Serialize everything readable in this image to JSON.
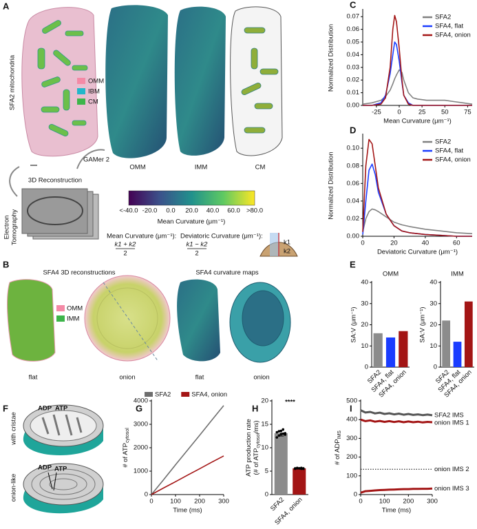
{
  "panel_a": {
    "letter": "A",
    "side_label": "SFA2 mitochondria",
    "legend": [
      "OMM",
      "IBM",
      "CM"
    ],
    "arrow_label": "GAMer 2",
    "reconstruction": "3D Reconstruction",
    "tomography": [
      "Electron",
      "Tomography"
    ],
    "maps": [
      "OMM",
      "IMM",
      "CM"
    ],
    "colorbar": {
      "ticks": [
        "<-40.0",
        "-20.0",
        "0.0",
        "20.0",
        "40.0",
        "60.0",
        ">80.0"
      ],
      "label": "Mean Curvature (μm⁻¹)"
    },
    "mean_def": "Mean Curvature (μm⁻¹):",
    "mean_formula": [
      "k1 + k2",
      "2"
    ],
    "dev_def": "Deviatoric Curvature (μm⁻¹):",
    "dev_formula": [
      "k1 − k2",
      "2"
    ],
    "diagram_labels": [
      "k1",
      "k2"
    ]
  },
  "panel_b": {
    "letter": "B",
    "title_left": "SFA4 3D reconstructions",
    "title_right": "SFA4 curvature maps",
    "legend": [
      "OMM",
      "IMM"
    ],
    "captions": [
      "flat",
      "onion",
      "flat",
      "onion"
    ]
  },
  "panel_f": {
    "letter": "F",
    "top": "with cristae",
    "bottom": "onion-like",
    "top_labels": [
      "ADP",
      "ATP"
    ],
    "bottom_labels": [
      "ADP",
      "ATP"
    ]
  },
  "letters": [
    "C",
    "D",
    "E",
    "G",
    "H",
    "I"
  ],
  "chart_data": [
    {
      "type": "line",
      "xlabel": "Mean Curvature (μm⁻¹)",
      "ylabel": "Normalized Distribution",
      "legend": "upper right",
      "x": [
        -40,
        -30,
        -20,
        -15,
        -10,
        -7,
        -5,
        -3,
        0,
        3,
        5,
        10,
        15,
        20,
        30,
        40,
        50,
        60,
        70,
        80
      ],
      "series": [
        {
          "name": "SFA2",
          "color": "#808080",
          "values": [
            0.001,
            0.002,
            0.004,
            0.007,
            0.012,
            0.017,
            0.021,
            0.024,
            0.028,
            0.026,
            0.02,
            0.01,
            0.006,
            0.005,
            0.004,
            0.004,
            0.004,
            0.003,
            0.002,
            0.001
          ]
        },
        {
          "name": "SFA4, flat",
          "color": "#1a3cff",
          "values": [
            0,
            0,
            0.002,
            0.008,
            0.025,
            0.04,
            0.05,
            0.048,
            0.035,
            0.018,
            0.008,
            0.002,
            0,
            0,
            0,
            0,
            0,
            0,
            0,
            0
          ]
        },
        {
          "name": "SFA4, onion",
          "color": "#a31515",
          "values": [
            0,
            0,
            0.001,
            0.006,
            0.03,
            0.06,
            0.071,
            0.066,
            0.045,
            0.02,
            0.008,
            0.001,
            0,
            0,
            0,
            0,
            0,
            0,
            0,
            0
          ]
        }
      ],
      "xlim": [
        -40,
        80
      ],
      "xticks": [
        -25,
        0,
        25,
        50,
        75
      ],
      "ylim": [
        0,
        0.075
      ],
      "yticks": [
        {
          "value": 0,
          "label": "0.00"
        },
        {
          "value": 0.01,
          "label": "0.01"
        },
        {
          "value": 0.02,
          "label": "0.02"
        },
        {
          "value": 0.03,
          "label": "0.03"
        },
        {
          "value": 0.04,
          "label": "0.04"
        },
        {
          "value": 0.05,
          "label": "0.05"
        },
        {
          "value": 0.06,
          "label": "0.06"
        },
        {
          "value": 0.07,
          "label": "0.07"
        }
      ]
    },
    {
      "type": "line",
      "xlabel": "Deviatoric Curvature (μm⁻¹)",
      "ylabel": "Normalized Distribution",
      "legend": "upper right",
      "x": [
        0,
        2,
        4,
        6,
        8,
        10,
        15,
        20,
        25,
        30,
        40,
        50,
        60,
        70
      ],
      "series": [
        {
          "name": "SFA2",
          "color": "#808080",
          "values": [
            0.005,
            0.02,
            0.028,
            0.031,
            0.03,
            0.028,
            0.022,
            0.016,
            0.013,
            0.011,
            0.008,
            0.006,
            0.004,
            0.003
          ]
        },
        {
          "name": "SFA4, flat",
          "color": "#1a3cff",
          "values": [
            0.002,
            0.04,
            0.075,
            0.082,
            0.07,
            0.05,
            0.025,
            0.012,
            0.006,
            0.004,
            0.002,
            0.001,
            0,
            0
          ]
        },
        {
          "name": "SFA4, onion",
          "color": "#a31515",
          "values": [
            0.005,
            0.08,
            0.11,
            0.105,
            0.08,
            0.055,
            0.025,
            0.012,
            0.006,
            0.004,
            0.002,
            0.001,
            0,
            0
          ]
        }
      ],
      "xlim": [
        0,
        70
      ],
      "xticks": [
        0,
        20,
        40,
        60
      ],
      "ylim": [
        0,
        0.115
      ],
      "yticks": [
        {
          "value": 0,
          "label": "0.00"
        },
        {
          "value": 0.02,
          "label": "0.02"
        },
        {
          "value": 0.04,
          "label": "0.04"
        },
        {
          "value": 0.06,
          "label": "0.06"
        },
        {
          "value": 0.08,
          "label": "0.08"
        },
        {
          "value": 0.1,
          "label": "0.10"
        }
      ]
    },
    {
      "type": "bar",
      "title": "OMM",
      "ylabel": "SA:V (μm⁻¹)",
      "categories": [
        "SFA2",
        "SFA4, flat",
        "SFA4, onion"
      ],
      "values": [
        16,
        14,
        17
      ],
      "colors": [
        "#8c8c8c",
        "#1a3cff",
        "#a31515"
      ],
      "ylim": [
        0,
        40
      ],
      "yticks": [
        0,
        10,
        20,
        30,
        40
      ]
    },
    {
      "type": "bar",
      "title": "IMM",
      "ylabel": "SA:V (μm⁻¹)",
      "categories": [
        "SFA2",
        "SFA4, flat",
        "SFA4, onion"
      ],
      "values": [
        22,
        12,
        31
      ],
      "colors": [
        "#8c8c8c",
        "#1a3cff",
        "#a31515"
      ],
      "ylim": [
        0,
        40
      ],
      "yticks": [
        0,
        10,
        20,
        30,
        40
      ]
    },
    {
      "type": "line",
      "xlabel": "Time (ms)",
      "ylabel": [
        "# of ATP",
        "cytosol"
      ],
      "legend": "top",
      "x": [
        0,
        50,
        100,
        150,
        200,
        250,
        300
      ],
      "series": [
        {
          "name": "SFA2",
          "color": "#6e6e6e",
          "values": [
            0,
            630,
            1270,
            1900,
            2530,
            3170,
            3800
          ]
        },
        {
          "name": "SFA4, onion",
          "color": "#a31515",
          "values": [
            0,
            280,
            550,
            830,
            1100,
            1380,
            1650
          ]
        }
      ],
      "xlim": [
        0,
        300
      ],
      "xticks": [
        0,
        100,
        200,
        300
      ],
      "ylim": [
        0,
        4000
      ],
      "yticks": [
        0,
        1000,
        2000,
        3000,
        4000
      ]
    },
    {
      "type": "bar",
      "ylabel": [
        "ATP production rate",
        "(# of ATP",
        "cytosol",
        "/ms)"
      ],
      "annotation": "****",
      "categories": [
        "SFA2",
        "SFA4, onion"
      ],
      "values": [
        13.1,
        5.6
      ],
      "errors": [
        0.6,
        0.1
      ],
      "points": [
        [
          12.2,
          12.6,
          12.9,
          13.0,
          13.1,
          13.3,
          13.5,
          13.6,
          13.9,
          12.8
        ],
        [
          5.5,
          5.6,
          5.6,
          5.7,
          5.5,
          5.6,
          5.7,
          5.6,
          5.5,
          5.6
        ]
      ],
      "colors": [
        "#8c8c8c",
        "#a31515"
      ],
      "ylim": [
        0,
        20
      ],
      "yticks": [
        0,
        5,
        10,
        15,
        20
      ]
    },
    {
      "type": "line",
      "xlabel": "Time (ms)",
      "ylabel": [
        "# of ADP",
        "IMS"
      ],
      "x": [
        0,
        20,
        40,
        60,
        80,
        100,
        120,
        140,
        160,
        180,
        200,
        220,
        240,
        260,
        280,
        300
      ],
      "series": [
        {
          "name": "SFA2 IMS",
          "color": "#555555",
          "values": [
            450,
            438,
            441,
            433,
            437,
            430,
            434,
            428,
            432,
            426,
            430,
            425,
            428,
            424,
            427,
            423
          ]
        },
        {
          "name": "onion IMS 1",
          "color": "#a31515",
          "values": [
            400,
            392,
            396,
            389,
            393,
            388,
            392,
            387,
            391,
            386,
            390,
            386,
            389,
            385,
            388,
            386
          ]
        },
        {
          "name": "onion IMS 2",
          "color": "#000000",
          "style": "dotted",
          "values": [
            135,
            135,
            135,
            135,
            135,
            135,
            135,
            135,
            135,
            135,
            135,
            135,
            135,
            135,
            135,
            135
          ]
        },
        {
          "name": "onion IMS 3",
          "color": "#a31515",
          "values": [
            10,
            18,
            20,
            22,
            24,
            25,
            26,
            27,
            28,
            29,
            29,
            30,
            30,
            31,
            31,
            32
          ]
        }
      ],
      "xlim": [
        0,
        300
      ],
      "xticks": [
        0,
        100,
        200,
        300
      ],
      "ylim": [
        0,
        500
      ],
      "yticks": [
        0,
        100,
        200,
        300,
        400,
        500
      ]
    }
  ]
}
